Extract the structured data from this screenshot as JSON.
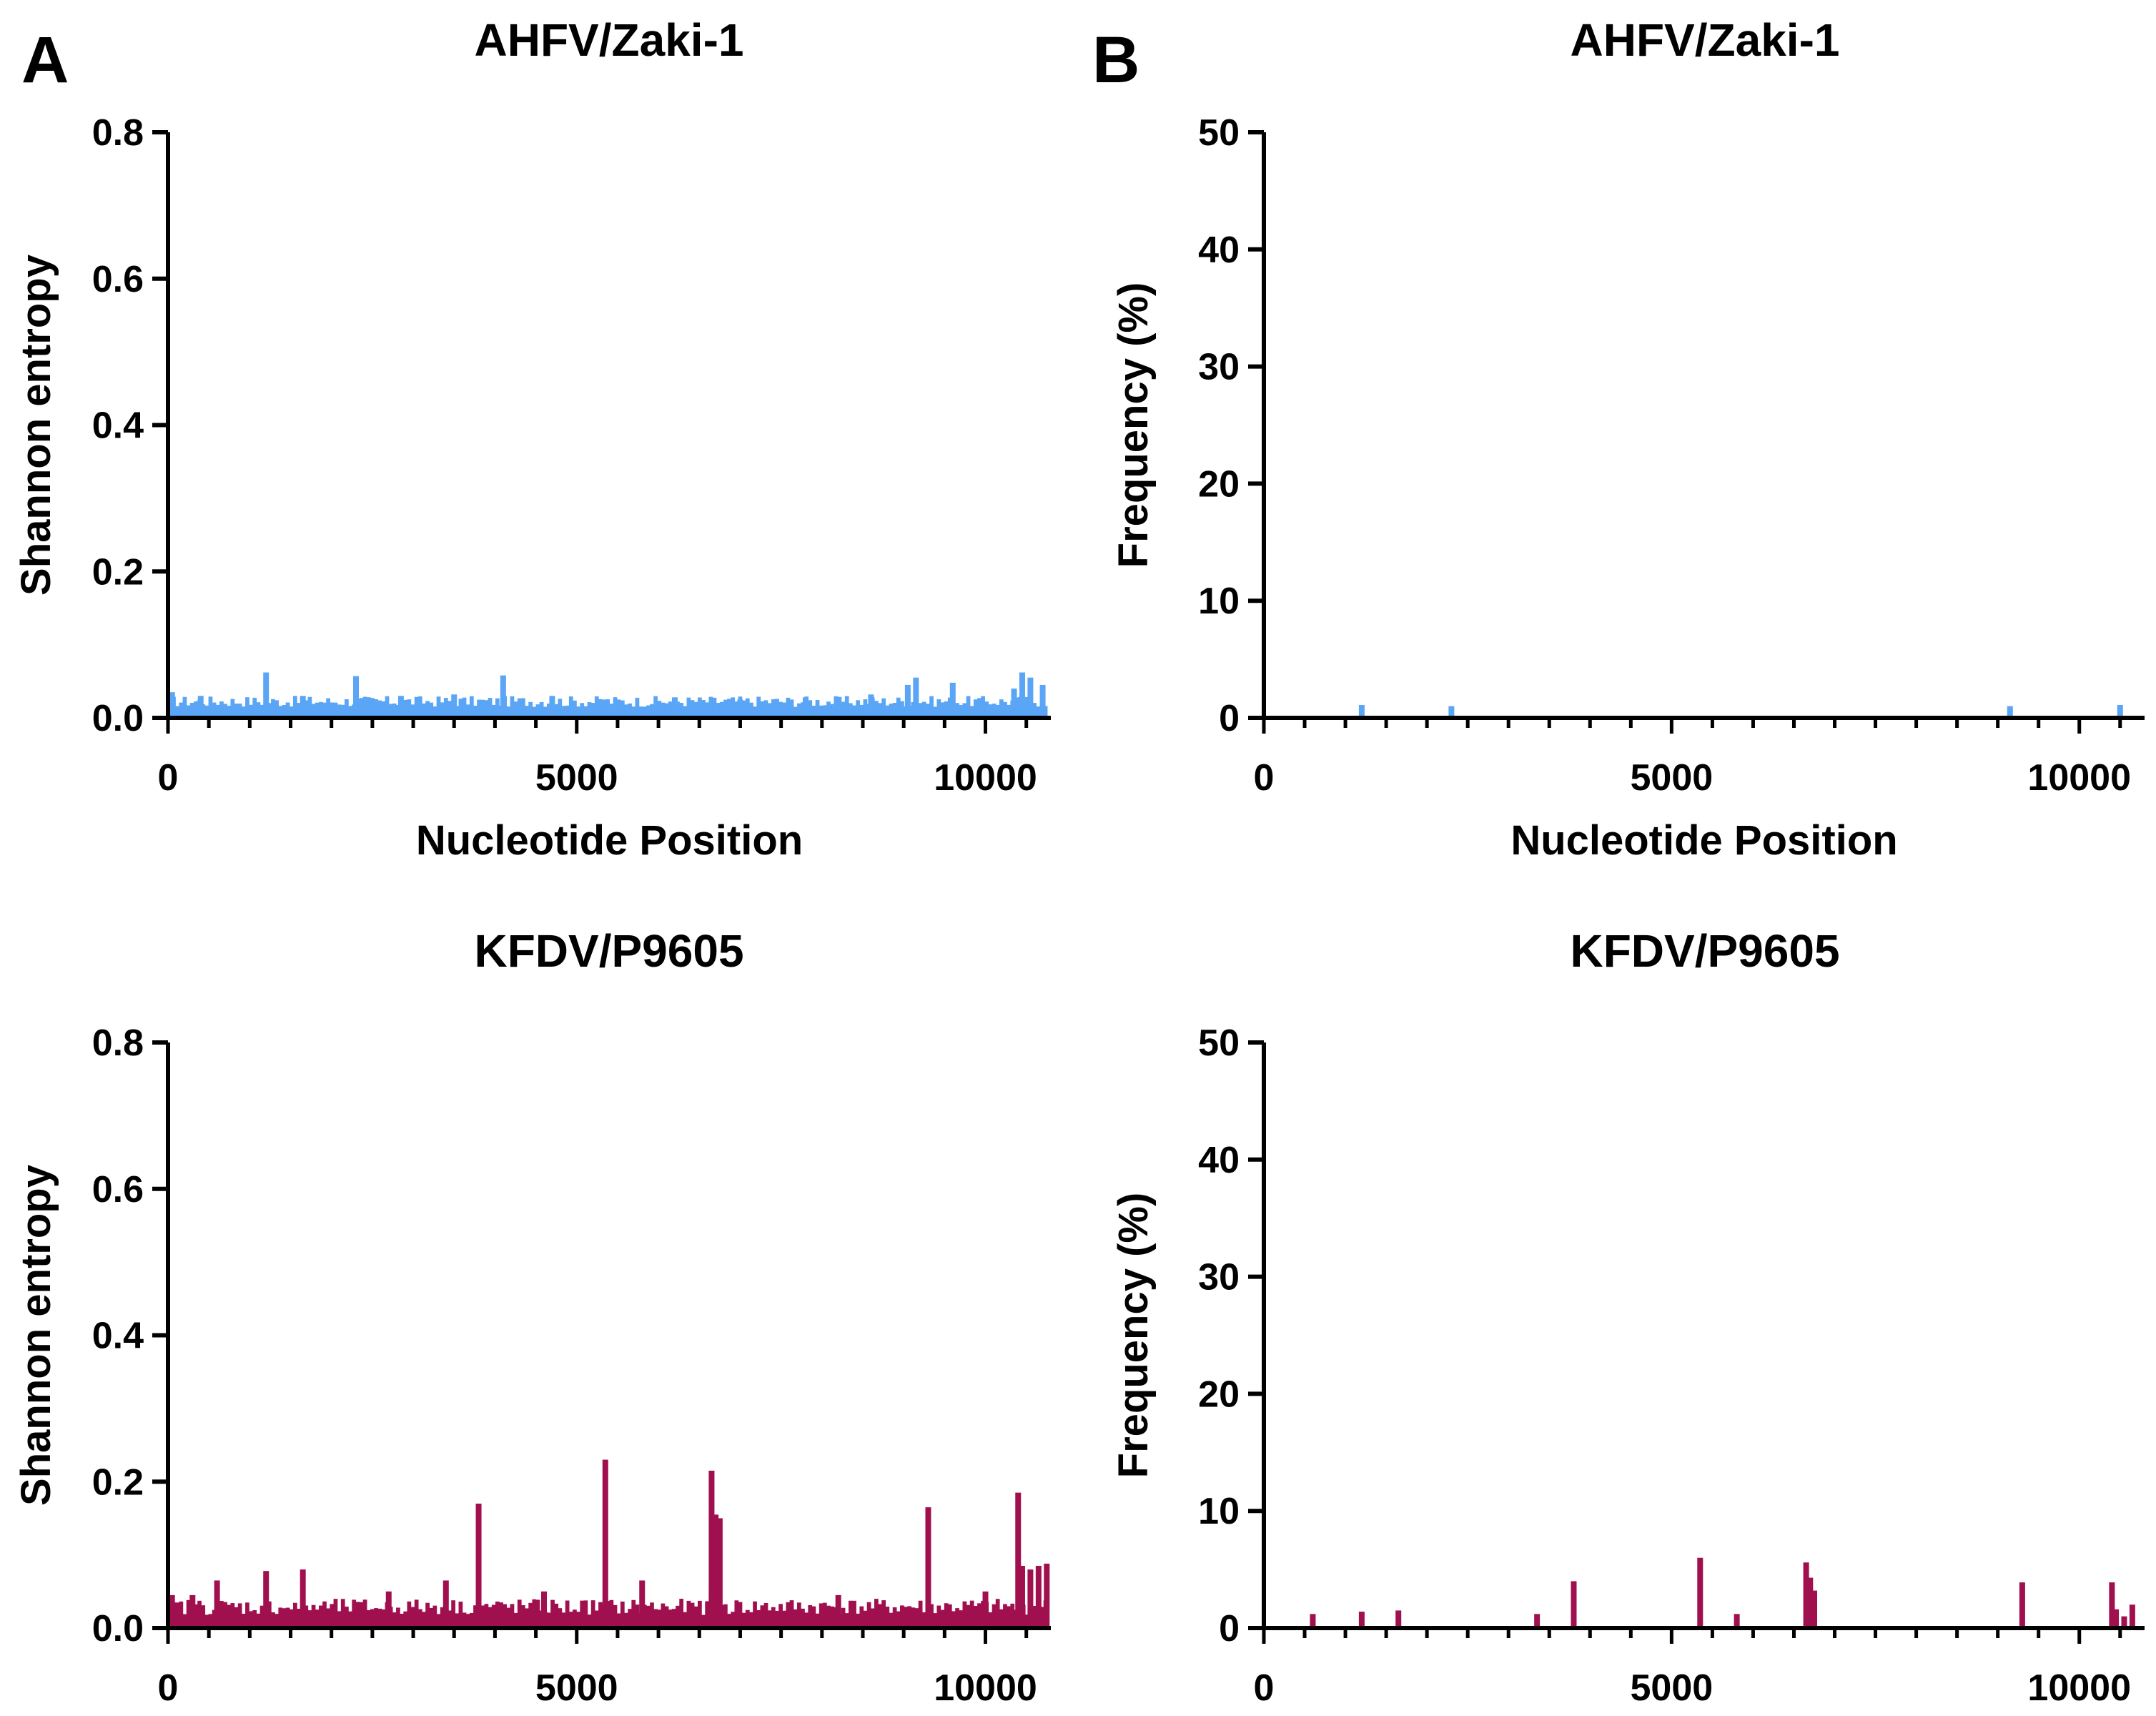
{
  "panels": {
    "a_label": "A",
    "b_label": "B"
  },
  "colors": {
    "ahfv": "#5aa5f5",
    "kfdv": "#a0104e",
    "axis": "#000000"
  },
  "chart_data": [
    {
      "id": "ahfv-entropy",
      "type": "bar",
      "title": "AHFV/Zaki-1",
      "xlabel": "Nucleotide Position",
      "ylabel": "Shannon entropy",
      "xlim": [
        0,
        10800
      ],
      "ylim": [
        0,
        0.8
      ],
      "xticks": [
        "0",
        "5000",
        "10000"
      ],
      "yticks": [
        "0.0",
        "0.2",
        "0.4",
        "0.6",
        "0.8"
      ],
      "baseline": 0.015,
      "baseline_variation": 0.015,
      "series": [
        {
          "name": "AHFV/Zaki-1",
          "color": "#5aa5f5",
          "x": [
            50,
            400,
            1200,
            1650,
            2300,
            2850,
            3500,
            4100,
            4700,
            5350,
            6200,
            7000,
            7800,
            8600,
            9050,
            9150,
            9600,
            10350,
            10450,
            10550,
            10700
          ],
          "values": [
            0.035,
            0.03,
            0.062,
            0.03,
            0.057,
            0.03,
            0.032,
            0.058,
            0.03,
            0.025,
            0.028,
            0.025,
            0.028,
            0.032,
            0.045,
            0.055,
            0.048,
            0.04,
            0.062,
            0.055,
            0.045
          ]
        }
      ]
    },
    {
      "id": "ahfv-frequency",
      "type": "bar",
      "title": "AHFV/Zaki-1",
      "xlabel": "Nucleotide Position",
      "ylabel": "Frequency (%)",
      "xlim": [
        0,
        10800
      ],
      "ylim": [
        0,
        50
      ],
      "xticks": [
        "0",
        "5000",
        "10000"
      ],
      "yticks": [
        "0",
        "10",
        "20",
        "30",
        "40",
        "50"
      ],
      "series": [
        {
          "name": "AHFV/Zaki-1",
          "color": "#5aa5f5",
          "x": [
            1200,
            2300,
            9150,
            10500
          ],
          "values": [
            1.1,
            1.0,
            1.0,
            1.1
          ]
        }
      ]
    },
    {
      "id": "kfdv-entropy",
      "type": "bar",
      "title": "KFDV/P9605",
      "xlabel": "",
      "ylabel": "Shannon entropy",
      "xlim": [
        0,
        10800
      ],
      "ylim": [
        0,
        0.8
      ],
      "xticks": [
        "0",
        "5000",
        "10000"
      ],
      "yticks": [
        "0.0",
        "0.2",
        "0.4",
        "0.6",
        "0.8"
      ],
      "baseline": 0.018,
      "baseline_variation": 0.022,
      "series": [
        {
          "name": "KFDV/P9605",
          "color": "#a0104e",
          "x": [
            50,
            300,
            600,
            1200,
            1650,
            2700,
            3400,
            3800,
            4600,
            5350,
            5800,
            6650,
            6700,
            6750,
            8200,
            9300,
            10000,
            10400,
            10450,
            10550,
            10650,
            10750
          ],
          "values": [
            0.045,
            0.045,
            0.065,
            0.078,
            0.08,
            0.05,
            0.065,
            0.17,
            0.05,
            0.23,
            0.065,
            0.215,
            0.155,
            0.15,
            0.045,
            0.165,
            0.05,
            0.185,
            0.085,
            0.08,
            0.085,
            0.088
          ]
        }
      ]
    },
    {
      "id": "kfdv-frequency",
      "type": "bar",
      "title": "KFDV/P9605",
      "xlabel": "",
      "ylabel": "Frequency (%)",
      "xlim": [
        0,
        10800
      ],
      "ylim": [
        0,
        50
      ],
      "xticks": [
        "0",
        "5000",
        "10000"
      ],
      "yticks": [
        "0",
        "10",
        "20",
        "30",
        "40",
        "50"
      ],
      "series": [
        {
          "name": "KFDV/P9605",
          "color": "#a0104e",
          "x": [
            600,
            1200,
            1650,
            3350,
            3800,
            5350,
            5800,
            6650,
            6700,
            6750,
            9300,
            10400,
            10450,
            10550,
            10650
          ],
          "values": [
            1.2,
            1.4,
            1.5,
            1.2,
            4.0,
            6.0,
            1.2,
            5.6,
            4.3,
            3.2,
            3.9,
            3.9,
            1.6,
            1.0,
            2.0
          ]
        }
      ]
    }
  ]
}
